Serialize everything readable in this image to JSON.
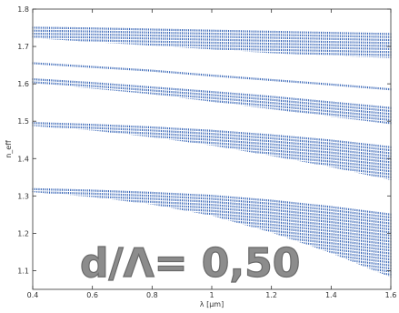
{
  "chart_data": {
    "type": "scatter",
    "title": "",
    "xlabel": "λ [μm]",
    "ylabel": "n_eff",
    "overlay_text": "d/Λ= 0,50",
    "xlim": [
      0.4,
      1.6
    ],
    "ylim": [
      1.05,
      1.8
    ],
    "x_ticks": [
      "0.4",
      "0.6",
      "0.8",
      "1",
      "1.2",
      "1.4",
      "1.6"
    ],
    "y_ticks": [
      "1.1",
      "1.2",
      "1.3",
      "1.4",
      "1.5",
      "1.6",
      "1.7",
      "1.8"
    ],
    "grid": false,
    "marker_color": "#2f5fb3",
    "bands": [
      {
        "x": [
          0.4,
          0.6,
          0.8,
          1.0,
          1.2,
          1.4,
          1.6
        ],
        "upper": [
          1.75,
          1.748,
          1.745,
          1.742,
          1.739,
          1.736,
          1.733
        ],
        "lower": [
          1.725,
          1.715,
          1.705,
          1.695,
          1.685,
          1.678,
          1.672
        ]
      },
      {
        "x": [
          0.4,
          0.6,
          0.8,
          1.0,
          1.2,
          1.4,
          1.6
        ],
        "upper": [
          1.655,
          1.645,
          1.635,
          1.622,
          1.61,
          1.598,
          1.585
        ]
      },
      {
        "x": [
          0.4,
          0.6,
          0.8,
          1.0,
          1.2,
          1.4,
          1.6
        ],
        "upper": [
          1.612,
          1.602,
          1.59,
          1.578,
          1.565,
          1.55,
          1.535
        ],
        "lower": [
          1.605,
          1.59,
          1.575,
          1.555,
          1.535,
          1.515,
          1.495
        ]
      },
      {
        "x": [
          0.4,
          0.6,
          0.8,
          1.0,
          1.2,
          1.4,
          1.6
        ],
        "upper": [
          1.495,
          1.49,
          1.483,
          1.474,
          1.462,
          1.448,
          1.43
        ],
        "lower": [
          1.49,
          1.478,
          1.46,
          1.438,
          1.41,
          1.38,
          1.345
        ]
      },
      {
        "x": [
          0.4,
          0.6,
          0.8,
          1.0,
          1.2,
          1.4,
          1.6
        ],
        "upper": [
          1.318,
          1.314,
          1.308,
          1.3,
          1.287,
          1.27,
          1.25
        ],
        "lower": [
          1.313,
          1.3,
          1.28,
          1.25,
          1.205,
          1.15,
          1.085
        ]
      }
    ]
  }
}
